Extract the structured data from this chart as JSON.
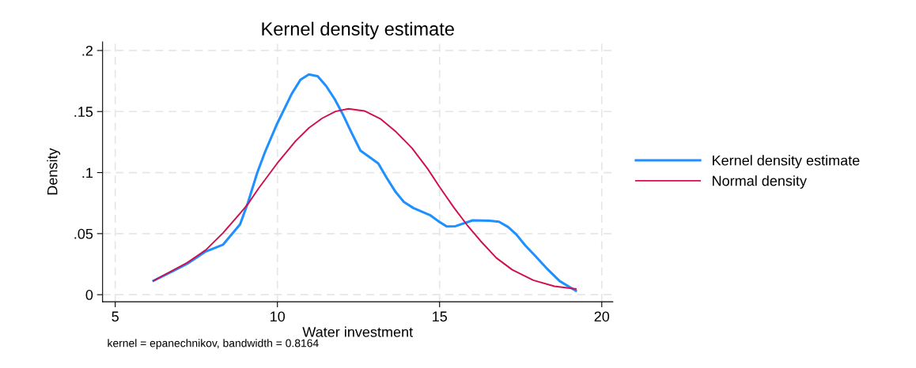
{
  "chart_data": {
    "type": "line",
    "title": "Kernel density estimate",
    "xlabel": "Water investment",
    "ylabel": "Density",
    "annotations": [
      "kernel = epanechnikov, bandwidth = 0.8164"
    ],
    "xlim": [
      4.61,
      20.34
    ],
    "ylim": [
      -0.0058,
      0.207
    ],
    "xticks": [
      5,
      10,
      15,
      20
    ],
    "yticks": [
      {
        "value": 0,
        "label": "0"
      },
      {
        "value": 0.05,
        "label": ".05"
      },
      {
        "value": 0.1,
        "label": ".1"
      },
      {
        "value": 0.15,
        "label": ".15"
      },
      {
        "value": 0.2,
        "label": ".2"
      }
    ],
    "grid": true,
    "legend": "right",
    "marker": "none",
    "line_style": "solid",
    "series": [
      {
        "name": "Kernel density estimate",
        "color": "#1e90ff",
        "x": [
          6.18,
          6.81,
          7.22,
          7.77,
          8.32,
          8.85,
          9.09,
          9.38,
          9.62,
          9.99,
          10.44,
          10.71,
          10.97,
          11.24,
          11.5,
          11.77,
          12.03,
          12.28,
          12.56,
          12.85,
          13.11,
          13.37,
          13.64,
          13.9,
          14.19,
          14.7,
          14.96,
          15.22,
          15.49,
          16.02,
          16.54,
          16.83,
          17.11,
          17.36,
          17.64,
          17.93,
          18.29,
          18.7,
          19.2
        ],
        "values": [
          0.0114,
          0.0198,
          0.0254,
          0.0351,
          0.0409,
          0.0576,
          0.0753,
          0.1,
          0.117,
          0.14,
          0.1645,
          0.176,
          0.1804,
          0.179,
          0.171,
          0.16,
          0.147,
          0.133,
          0.118,
          0.1125,
          0.1075,
          0.0957,
          0.0843,
          0.0759,
          0.071,
          0.0652,
          0.0602,
          0.0559,
          0.0561,
          0.0609,
          0.0606,
          0.0598,
          0.0555,
          0.0495,
          0.0404,
          0.0323,
          0.0219,
          0.0112,
          0.0032
        ]
      },
      {
        "name": "Normal density",
        "color": "#d0104c",
        "x": [
          6.18,
          7.22,
          7.79,
          8.32,
          8.85,
          9.09,
          9.42,
          9.99,
          10.56,
          10.97,
          11.38,
          11.79,
          12.19,
          12.68,
          13.17,
          13.66,
          14.15,
          14.63,
          15.0,
          15.45,
          15.85,
          16.26,
          16.75,
          17.24,
          17.89,
          18.54,
          19.2
        ],
        "values": [
          0.0114,
          0.0262,
          0.0366,
          0.0505,
          0.0667,
          0.0742,
          0.0871,
          0.1075,
          0.1258,
          0.1366,
          0.1445,
          0.1501,
          0.1523,
          0.1505,
          0.1441,
          0.1333,
          0.12,
          0.1032,
          0.0882,
          0.071,
          0.057,
          0.0441,
          0.0301,
          0.0204,
          0.0118,
          0.0069,
          0.0047
        ]
      }
    ]
  }
}
